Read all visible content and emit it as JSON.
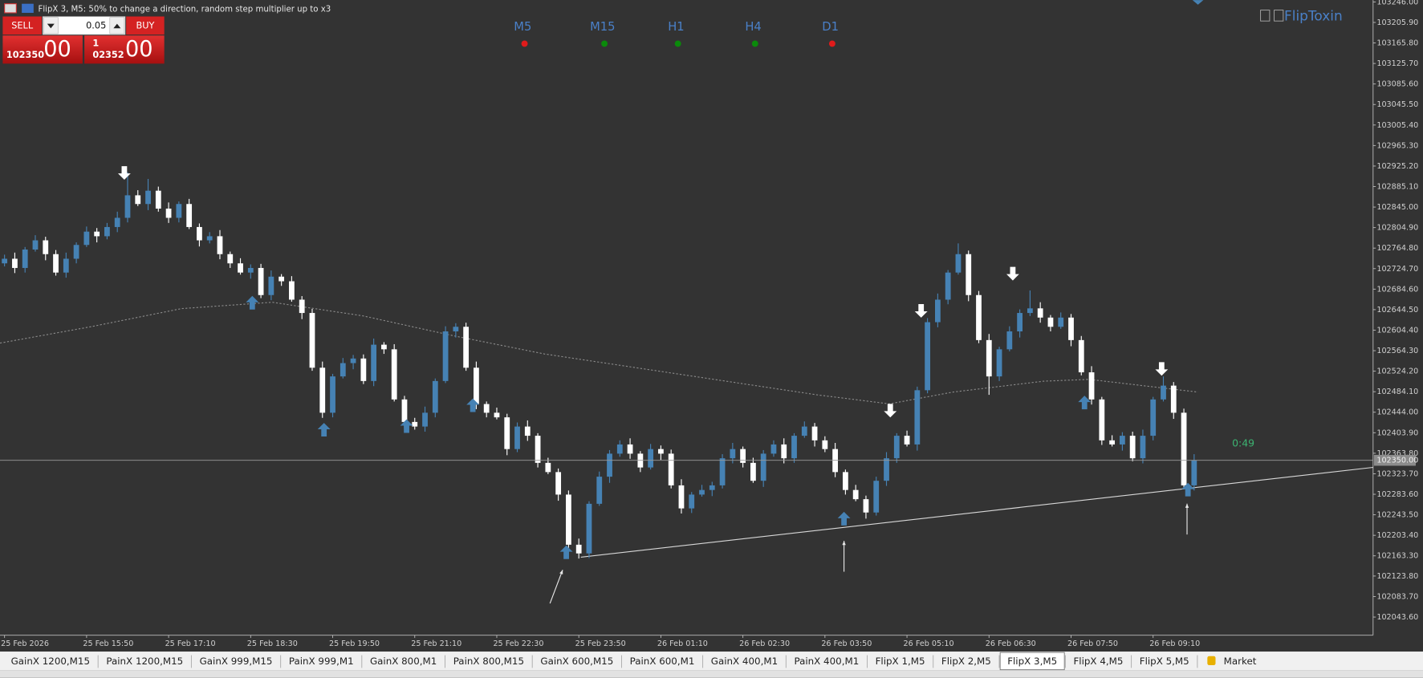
{
  "window": {
    "title": "FlipX 3, M5:  50% to change a direction, random step multiplier up to x3"
  },
  "trade_panel": {
    "sell": "SELL",
    "buy": "BUY",
    "volume": "0.05",
    "sell_price_small": "102350",
    "sell_price_large": "00",
    "buy_price_prefix": "1",
    "buy_price_small": "02352",
    "buy_price_large": "00"
  },
  "timeframes": [
    {
      "label": "M5",
      "color": "#e01b1b"
    },
    {
      "label": "M15",
      "color": "#0a8a0a"
    },
    {
      "label": "H1",
      "color": "#0a8a0a"
    },
    {
      "label": "H4",
      "color": "#0a8a0a"
    },
    {
      "label": "D1",
      "color": "#e01b1b"
    }
  ],
  "brand": "FlipToxin",
  "timer": "0:49",
  "price_label": "102350.00",
  "chart_data": {
    "type": "candlestick",
    "categories": [
      "25 Feb 2026",
      null,
      null,
      null,
      null,
      null,
      null,
      null,
      "25 Feb 15:50",
      null,
      null,
      null,
      null,
      null,
      null,
      null,
      "25 Feb 17:10",
      null,
      null,
      null,
      null,
      null,
      null,
      null,
      "25 Feb 18:30",
      null,
      null,
      null,
      null,
      null,
      null,
      null,
      "25 Feb 19:50",
      null,
      null,
      null,
      null,
      null,
      null,
      null,
      "25 Feb 21:10",
      null,
      null,
      null,
      null,
      null,
      null,
      null,
      "25 Feb 22:30",
      null,
      null,
      null,
      null,
      null,
      null,
      null,
      "25 Feb 23:50",
      null,
      null,
      null,
      null,
      null,
      null,
      null,
      "26 Feb 01:10",
      null,
      null,
      null,
      null,
      null,
      null,
      null,
      "26 Feb 02:30",
      null,
      null,
      null,
      null,
      null,
      null,
      null,
      "26 Feb 03:50",
      null,
      null,
      null,
      null,
      null,
      null,
      null,
      "26 Feb 05:10",
      null,
      null,
      null,
      null,
      null,
      null,
      null,
      "26 Feb 06:30",
      null,
      null,
      null,
      null,
      null,
      null,
      null,
      "26 Feb 07:50",
      null,
      null,
      null,
      null,
      null,
      null,
      null,
      "26 Feb 09:10",
      null,
      null,
      null,
      null
    ],
    "open": [
      102735,
      102744,
      102726,
      102762,
      102780,
      102753,
      102717,
      102744,
      102771,
      102797,
      102788,
      102806,
      102824,
      102868,
      102851,
      102877,
      102842,
      102824,
      102851,
      102806,
      102780,
      102788,
      102753,
      102735,
      102717,
      102726,
      102673,
      102709,
      102700,
      102664,
      102638,
      102531,
      102443,
      102514,
      102540,
      102549,
      102505,
      102576,
      102567,
      102469,
      102425,
      102416,
      102443,
      102505,
      102602,
      102611,
      102531,
      102460,
      102443,
      102434,
      102372,
      102416,
      102398,
      102345,
      102327,
      102283,
      102185,
      102168,
      102265,
      102318,
      102363,
      102381,
      102363,
      102336,
      102372,
      102363,
      102301,
      102256,
      102283,
      102292,
      102301,
      102354,
      102372,
      102345,
      102310,
      102363,
      102381,
      102354,
      102398,
      102416,
      102389,
      102372,
      102327,
      102292,
      102274,
      102248,
      102310,
      102354,
      102398,
      102381,
      102487,
      102620,
      102664,
      102717,
      102753,
      102673,
      102585,
      102514,
      102567,
      102602,
      102638,
      102647,
      102629,
      102611,
      102629,
      102585,
      102522,
      102469,
      102389,
      102381,
      102398,
      102354,
      102398,
      102469,
      102496,
      102443,
      102301
    ],
    "high": [
      102752,
      102756,
      102767,
      102790,
      102787,
      102761,
      102756,
      102776,
      102807,
      102804,
      102814,
      102836,
      102913,
      102878,
      102900,
      102885,
      102854,
      102856,
      102861,
      102813,
      102796,
      102800,
      102758,
      102745,
      102733,
      102734,
      102721,
      102714,
      102710,
      102671,
      102646,
      102543,
      102519,
      102550,
      102556,
      102557,
      102588,
      102581,
      102577,
      102476,
      102433,
      102455,
      102510,
      102612,
      102618,
      102619,
      102543,
      102465,
      102453,
      102441,
      102424,
      102428,
      102403,
      102355,
      102334,
      102291,
      102197,
      102270,
      102328,
      102370,
      102389,
      102393,
      102368,
      102382,
      102379,
      102371,
      102313,
      102288,
      102302,
      102308,
      102362,
      102384,
      102377,
      102355,
      102370,
      102389,
      102393,
      102403,
      102426,
      102423,
      102397,
      102384,
      102332,
      102302,
      102281,
      102318,
      102366,
      102403,
      102408,
      102494,
      102628,
      102676,
      102722,
      102774,
      102760,
      102681,
      102597,
      102572,
      102612,
      102645,
      102682,
      102659,
      102634,
      102639,
      102636,
      102593,
      102534,
      102474,
      102399,
      102405,
      102406,
      102410,
      102474,
      102514,
      102503,
      102451,
      102362
    ],
    "low": [
      102729,
      102716,
      102717,
      102758,
      102741,
      102711,
      102707,
      102735,
      102767,
      102776,
      102782,
      102796,
      102815,
      102847,
      102839,
      102836,
      102814,
      102815,
      102802,
      102768,
      102774,
      102743,
      102726,
      102713,
      102705,
      102667,
      102663,
      102691,
      102660,
      102626,
      102525,
      102433,
      102434,
      102510,
      102528,
      102499,
      102495,
      102558,
      102465,
      102413,
      102410,
      102406,
      102434,
      102501,
      102590,
      102525,
      102450,
      102434,
      102430,
      102360,
      102366,
      102388,
      102336,
      102323,
      102271,
      102179,
      102158,
      102159,
      102261,
      102306,
      102357,
      102353,
      102327,
      102332,
      102351,
      102295,
      102246,
      102247,
      102279,
      102280,
      102295,
      102344,
      102336,
      102306,
      102298,
      102357,
      102344,
      102345,
      102394,
      102377,
      102366,
      102317,
      102283,
      102270,
      102236,
      102242,
      102300,
      102345,
      102377,
      102369,
      102481,
      102610,
      102655,
      102713,
      102661,
      102579,
      102478,
      102505,
      102563,
      102590,
      102632,
      102619,
      102602,
      102607,
      102573,
      102516,
      102459,
      102380,
      102377,
      102369,
      102348,
      102344,
      102389,
      102465,
      102431,
      102295,
      102291
    ],
    "close": [
      102744,
      102726,
      102762,
      102780,
      102753,
      102717,
      102744,
      102771,
      102797,
      102788,
      102806,
      102824,
      102868,
      102851,
      102877,
      102842,
      102824,
      102851,
      102806,
      102780,
      102788,
      102753,
      102735,
      102717,
      102726,
      102673,
      102709,
      102700,
      102664,
      102638,
      102531,
      102443,
      102514,
      102540,
      102549,
      102505,
      102576,
      102567,
      102469,
      102425,
      102416,
      102443,
      102505,
      102602,
      102611,
      102531,
      102460,
      102443,
      102434,
      102372,
      102416,
      102398,
      102345,
      102327,
      102283,
      102185,
      102168,
      102265,
      102318,
      102363,
      102381,
      102363,
      102336,
      102372,
      102363,
      102301,
      102256,
      102283,
      102292,
      102301,
      102354,
      102372,
      102345,
      102310,
      102363,
      102381,
      102354,
      102398,
      102416,
      102389,
      102372,
      102327,
      102292,
      102274,
      102248,
      102310,
      102354,
      102398,
      102381,
      102487,
      102620,
      102664,
      102717,
      102753,
      102673,
      102585,
      102514,
      102567,
      102602,
      102638,
      102647,
      102629,
      102611,
      102629,
      102585,
      102522,
      102469,
      102389,
      102381,
      102398,
      102354,
      102398,
      102469,
      102496,
      102443,
      102301,
      102350
    ],
    "up_color": "#4682b4",
    "down_color": "#ffffff",
    "ylim": [
      102008.1,
      103249.5
    ],
    "yticks": [
      {
        "value": 102043.6,
        "label": "102043.60"
      },
      {
        "value": 102083.7,
        "label": "102083.70"
      },
      {
        "value": 102123.8,
        "label": "102123.80"
      },
      {
        "value": 102163.3,
        "label": "102163.30"
      },
      {
        "value": 102203.4,
        "label": "102203.40"
      },
      {
        "value": 102243.5,
        "label": "102243.50"
      },
      {
        "value": 102283.6,
        "label": "102283.60"
      },
      {
        "value": 102323.7,
        "label": "102323.70"
      },
      {
        "value": 102363.8,
        "label": "102363.80"
      },
      {
        "value": 102403.9,
        "label": "102403.90"
      },
      {
        "value": 102444,
        "label": "102444.00"
      },
      {
        "value": 102484.1,
        "label": "102484.10"
      },
      {
        "value": 102524.2,
        "label": "102524.20"
      },
      {
        "value": 102564.3,
        "label": "102564.30"
      },
      {
        "value": 102604.4,
        "label": "102604.40"
      },
      {
        "value": 102644.5,
        "label": "102644.50"
      },
      {
        "value": 102684.6,
        "label": "102684.60"
      },
      {
        "value": 102724.7,
        "label": "102724.70"
      },
      {
        "value": 102764.8,
        "label": "102764.80"
      },
      {
        "value": 102804.9,
        "label": "102804.90"
      },
      {
        "value": 102845,
        "label": "102845.00"
      },
      {
        "value": 102885.1,
        "label": "102885.10"
      },
      {
        "value": 102925.2,
        "label": "102925.20"
      },
      {
        "value": 102965.3,
        "label": "102965.30"
      },
      {
        "value": 103005.4,
        "label": "103005.40"
      },
      {
        "value": 103045.5,
        "label": "103045.50"
      },
      {
        "value": 103085.6,
        "label": "103085.60"
      },
      {
        "value": 103125.7,
        "label": "103125.70"
      },
      {
        "value": 103165.8,
        "label": "103165.80"
      },
      {
        "value": 103205.9,
        "label": "103205.90"
      },
      {
        "value": 103246,
        "label": "103246.00"
      }
    ]
  },
  "tabs": [
    "GainX 1200,M15",
    "PainX 1200,M15",
    "GainX 999,M15",
    "PainX 999,M1",
    "GainX 800,M1",
    "PainX 800,M15",
    "GainX 600,M15",
    "PainX 600,M1",
    "GainX 400,M1",
    "PainX 400,M1",
    "FlipX 1,M5",
    "FlipX 2,M5",
    "FlipX 3,M5",
    "FlipX 4,M5",
    "FlipX 5,M5",
    "Market"
  ]
}
